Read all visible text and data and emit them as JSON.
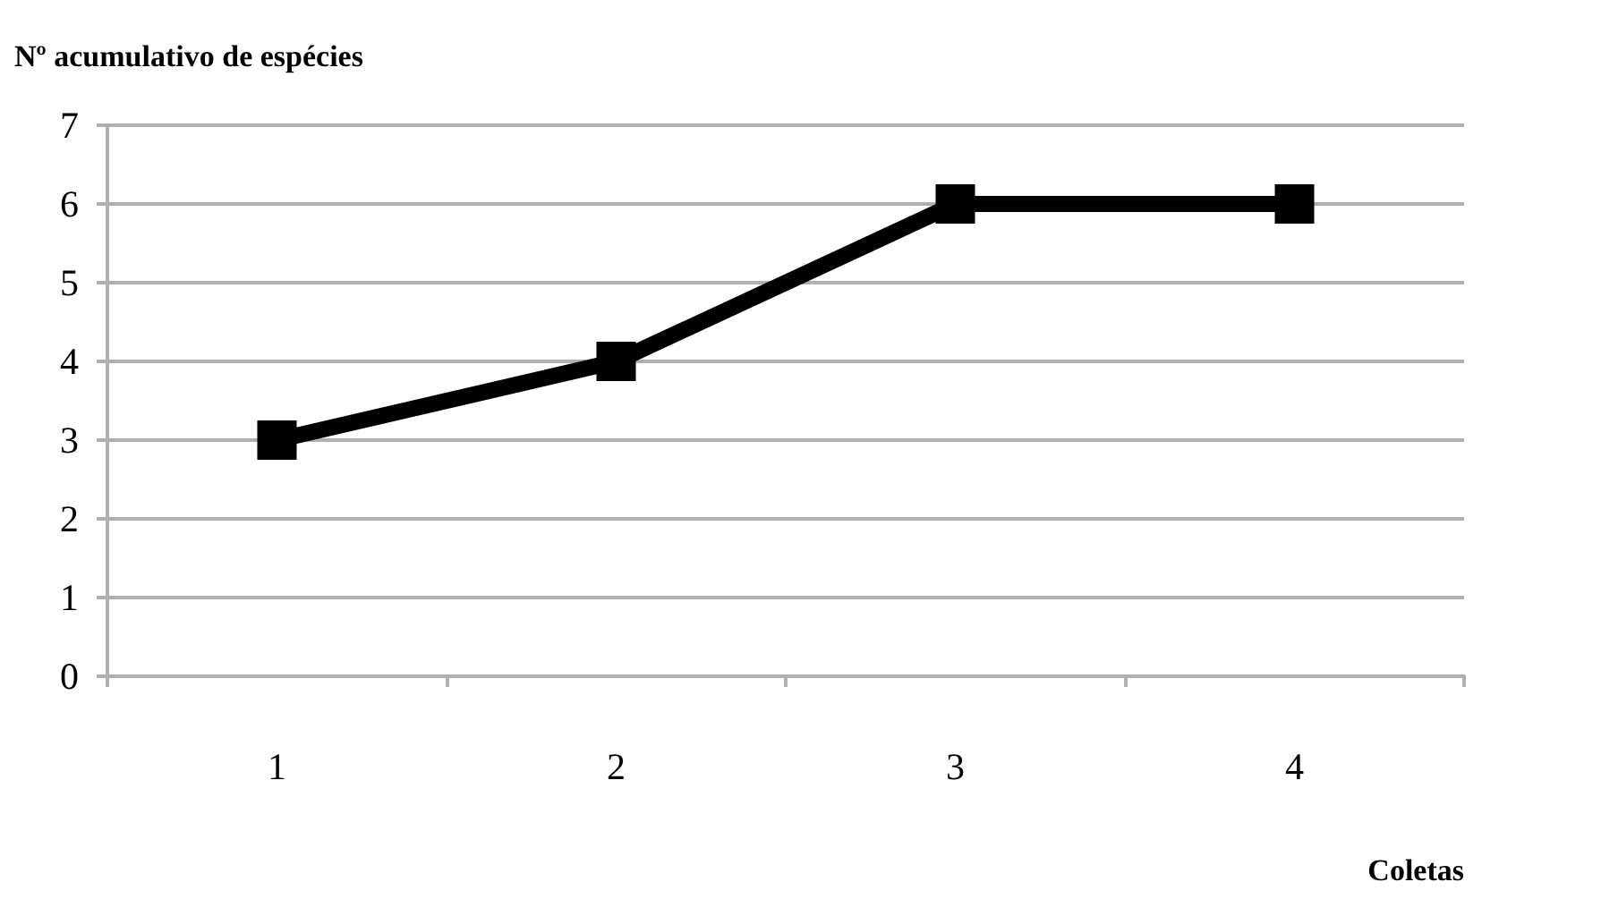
{
  "chart_data": {
    "type": "line",
    "ylabel": "Nº acumulativo de espécies",
    "xlabel": "Coletas",
    "categories": [
      "1",
      "2",
      "3",
      "4"
    ],
    "series": [
      {
        "color": "#000000",
        "values": [
          3,
          4,
          6,
          6
        ]
      }
    ],
    "ylim": [
      0,
      7
    ],
    "yticks": [
      0,
      1,
      2,
      3,
      4,
      5,
      6,
      7
    ],
    "grid": "y",
    "marker": "square",
    "line_style": "solid"
  }
}
